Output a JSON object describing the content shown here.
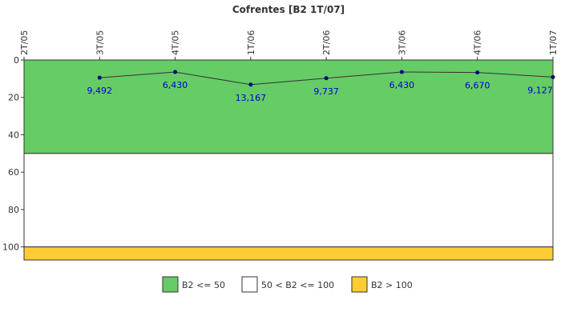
{
  "chart_data": {
    "type": "line",
    "title": "Cofrentes [B2 1T/07]",
    "xlabel": "",
    "ylabel": "",
    "x_categories": [
      "2T/05",
      "3T/05",
      "4T/05",
      "1T/06",
      "2T/06",
      "3T/06",
      "4T/06",
      "1T/07"
    ],
    "series": [
      {
        "x": [
          "3T/05",
          "4T/05",
          "1T/06",
          "2T/06",
          "3T/06",
          "4T/06",
          "1T/07"
        ],
        "values": [
          9.492,
          6.43,
          13.167,
          9.737,
          6.43,
          6.67,
          9.127
        ],
        "labels": [
          "9,492",
          "6,430",
          "13,167",
          "9,737",
          "6,430",
          "6,670",
          "9,127"
        ],
        "color": "#333333",
        "marker_color": "#000080"
      }
    ],
    "ylim": [
      0,
      107
    ],
    "y_inverted": true,
    "y_ticks": [
      0,
      20,
      40,
      60,
      80,
      100
    ],
    "grid": false,
    "bands": [
      {
        "from": 0,
        "to": 50,
        "color": "#66cc66"
      },
      {
        "from": 50,
        "to": 100,
        "color": "#ffffff"
      },
      {
        "from": 100,
        "to": 107,
        "color": "#ffcc33"
      }
    ],
    "legend": {
      "position": "bottom",
      "items": [
        {
          "label": "B2 <= 50",
          "color": "#66cc66"
        },
        {
          "label": "50 < B2 <= 100",
          "color": "#ffffff"
        },
        {
          "label": "B2 > 100",
          "color": "#ffcc33"
        }
      ]
    }
  }
}
